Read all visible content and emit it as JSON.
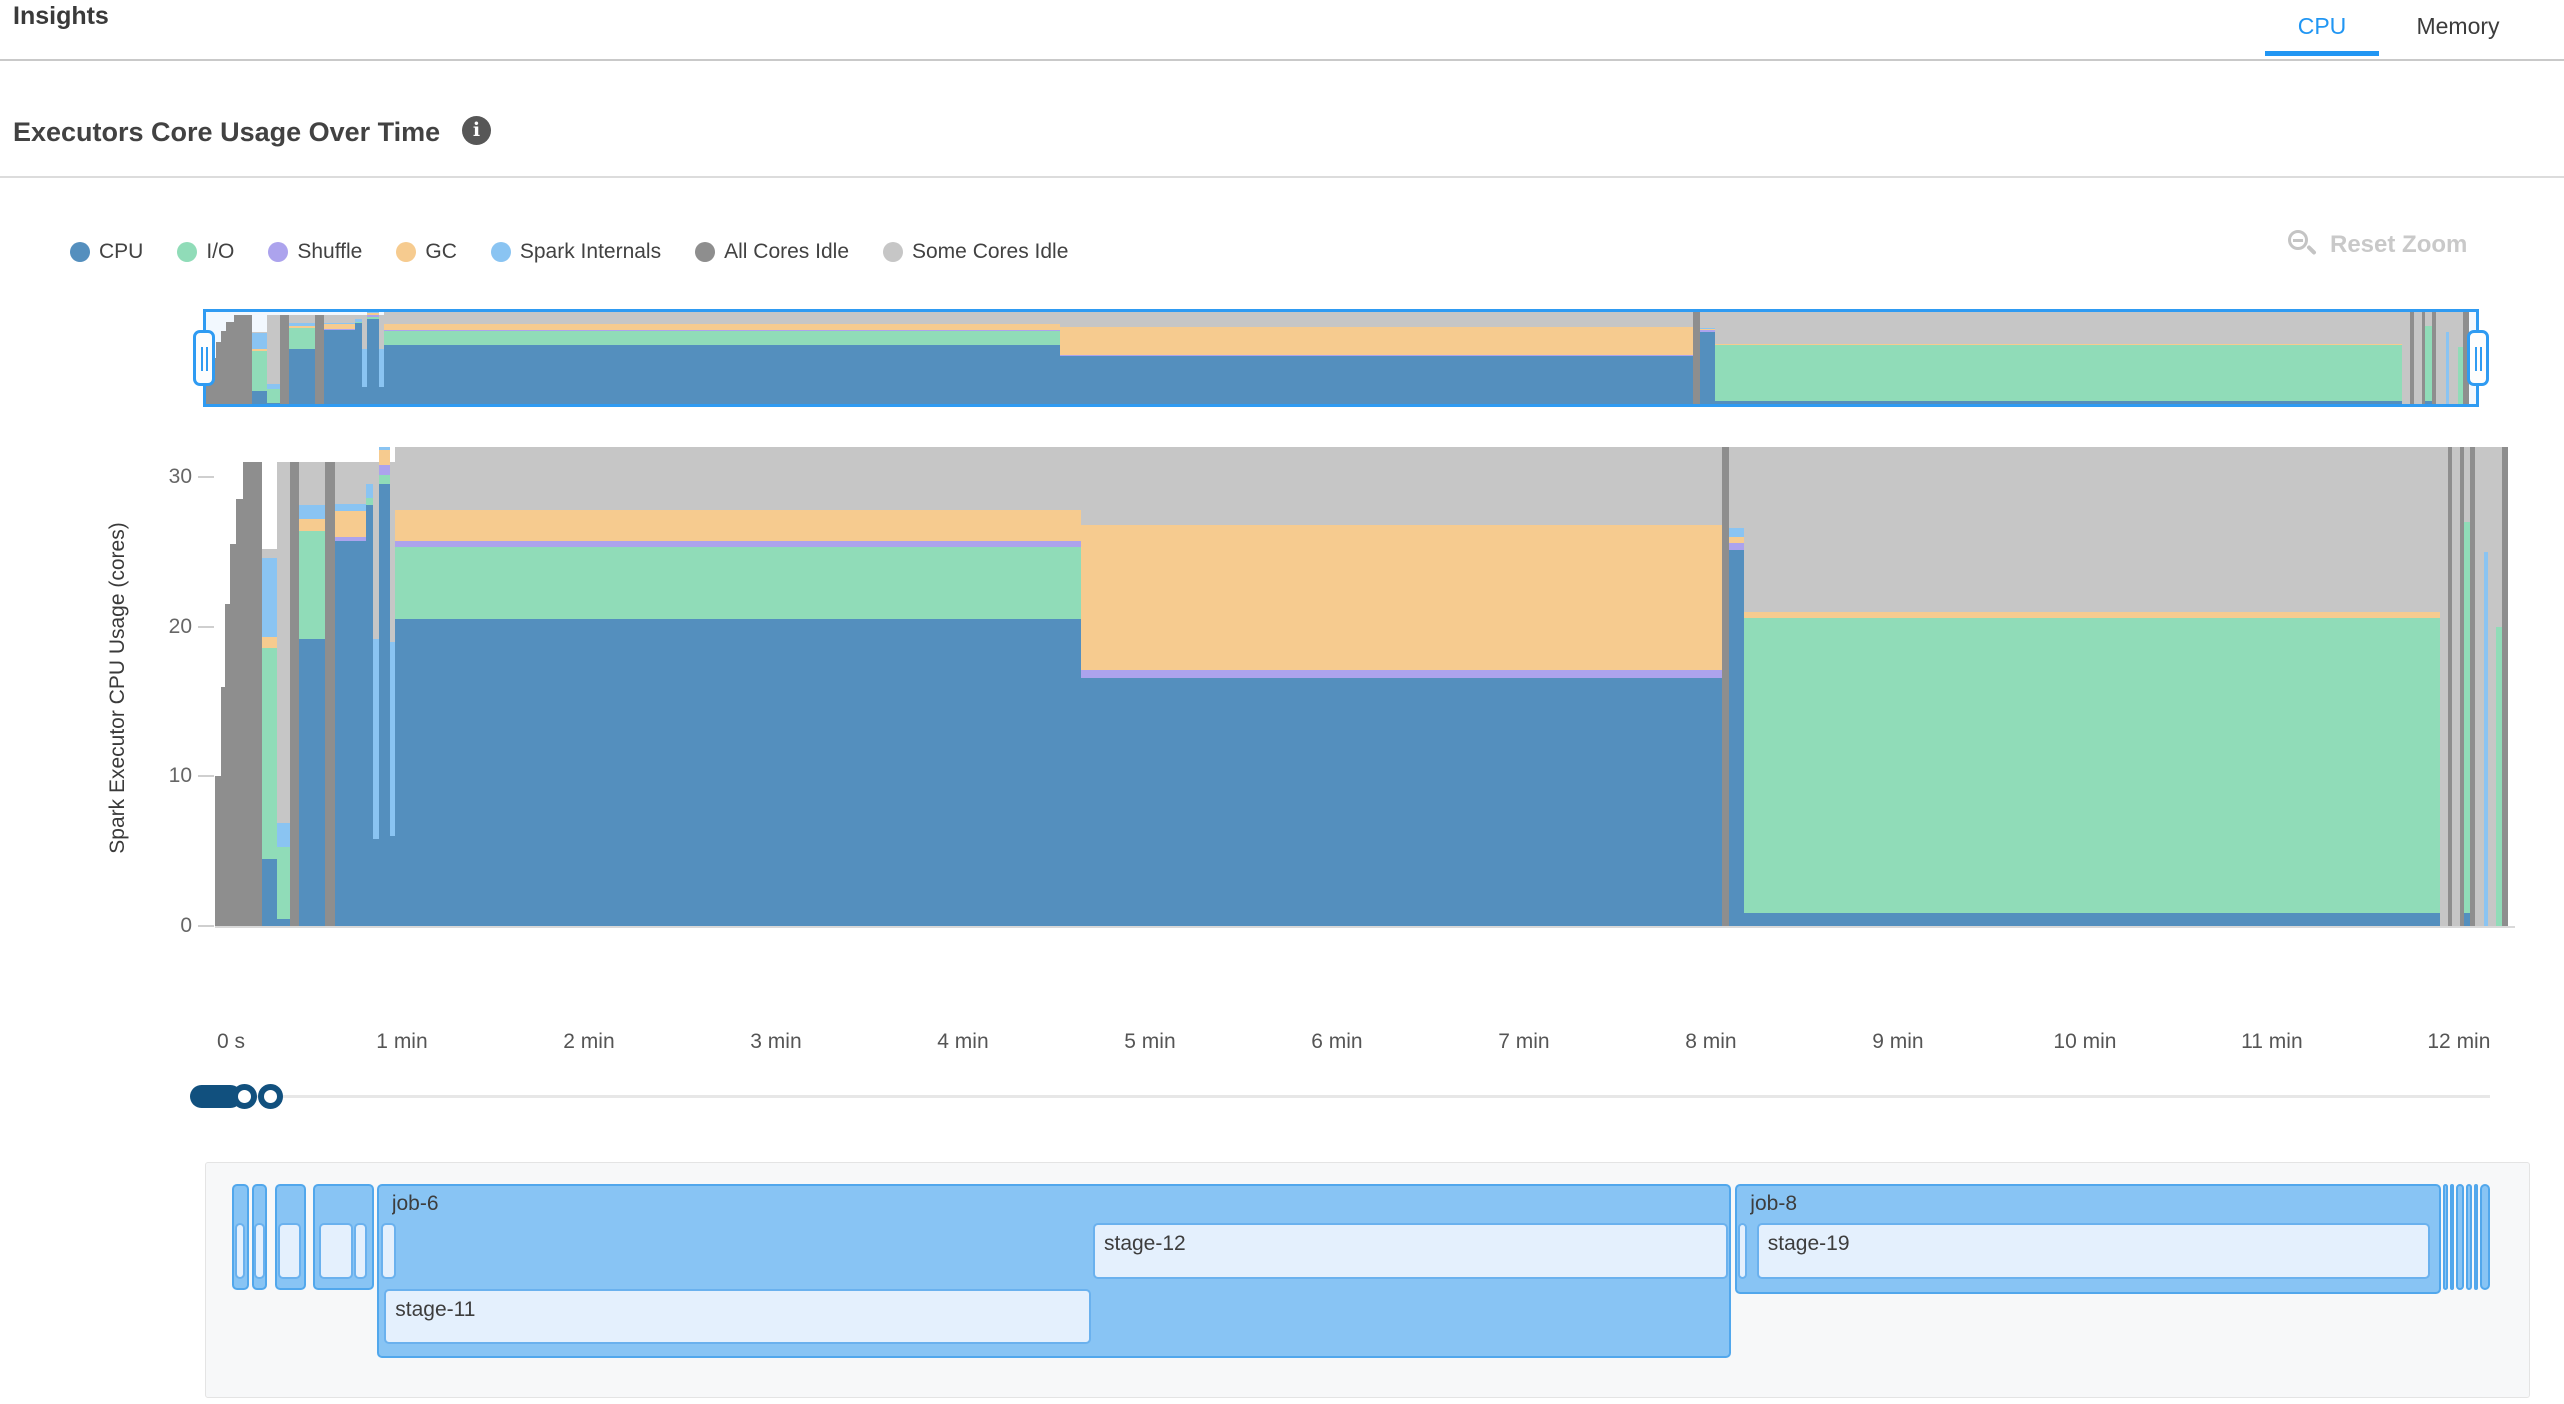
{
  "header": {
    "title": "Insights",
    "tabs": [
      {
        "label": "CPU",
        "active": true
      },
      {
        "label": "Memory",
        "active": false
      }
    ]
  },
  "section": {
    "title": "Executors Core Usage Over Time",
    "info_glyph": "i"
  },
  "toolbar": {
    "reset_zoom_label": "Reset Zoom"
  },
  "legend": [
    {
      "key": "cpu",
      "label": "CPU"
    },
    {
      "key": "io",
      "label": "I/O"
    },
    {
      "key": "shuffle",
      "label": "Shuffle"
    },
    {
      "key": "gc",
      "label": "GC"
    },
    {
      "key": "spark_internals",
      "label": "Spark Internals"
    },
    {
      "key": "all_cores_idle",
      "label": "All Cores Idle"
    },
    {
      "key": "some_cores_idle",
      "label": "Some Cores Idle"
    }
  ],
  "chart_data": {
    "type": "area",
    "title": "Executors Core Usage Over Time",
    "ylabel": "Spark Executor CPU Usage (cores)",
    "xlabel": "",
    "ylim": [
      0,
      32
    ],
    "xlim_minutes": [
      0,
      12.3
    ],
    "grid": false,
    "legend_position": "top-left",
    "y_ticks": [
      {
        "v": 0,
        "label": "0"
      },
      {
        "v": 10,
        "label": "10"
      },
      {
        "v": 20,
        "label": "20"
      },
      {
        "v": 30,
        "label": "30"
      }
    ],
    "x_ticks": [
      {
        "t": 0,
        "label": "0 s"
      },
      {
        "t": 1,
        "label": "1 min"
      },
      {
        "t": 2,
        "label": "2 min"
      },
      {
        "t": 3,
        "label": "3 min"
      },
      {
        "t": 4,
        "label": "4 min"
      },
      {
        "t": 5,
        "label": "5 min"
      },
      {
        "t": 6,
        "label": "6 min"
      },
      {
        "t": 7,
        "label": "7 min"
      },
      {
        "t": 8,
        "label": "8 min"
      },
      {
        "t": 9,
        "label": "9 min"
      },
      {
        "t": 10,
        "label": "10 min"
      },
      {
        "t": 11,
        "label": "11 min"
      },
      {
        "t": 12,
        "label": "12 min"
      }
    ],
    "series_keys": [
      "cpu",
      "io",
      "shuffle",
      "gc",
      "spark_internals",
      "all_cores_idle",
      "some_cores_idle"
    ],
    "colors": {
      "cpu": "#548fbe",
      "io": "#90dcb8",
      "shuffle": "#aca3ed",
      "gc": "#f6cb8f",
      "spark_internals": "#8ac4f2",
      "all_cores_idle": "#8e8e8e",
      "some_cores_idle": "#c6c6c6"
    },
    "segments": [
      {
        "t0": 0.0,
        "t1": 0.03,
        "v": {
          "all_cores_idle": 10
        }
      },
      {
        "t0": 0.03,
        "t1": 0.055,
        "v": {
          "all_cores_idle": 16
        }
      },
      {
        "t0": 0.055,
        "t1": 0.08,
        "v": {
          "all_cores_idle": 21.5
        }
      },
      {
        "t0": 0.08,
        "t1": 0.11,
        "v": {
          "all_cores_idle": 25.5
        }
      },
      {
        "t0": 0.11,
        "t1": 0.15,
        "v": {
          "all_cores_idle": 28.5
        }
      },
      {
        "t0": 0.15,
        "t1": 0.25,
        "v": {
          "all_cores_idle": 31
        }
      },
      {
        "t0": 0.25,
        "t1": 0.33,
        "v": {
          "cpu": 4.5,
          "io": 14.1,
          "gc": 0.7,
          "spark_internals": 5.3,
          "some_cores_idle": 0.6
        }
      },
      {
        "t0": 0.33,
        "t1": 0.4,
        "v": {
          "cpu": 0.5,
          "io": 4.8,
          "spark_internals": 1.6,
          "some_cores_idle": 24.1
        }
      },
      {
        "t0": 0.4,
        "t1": 0.45,
        "v": {
          "all_cores_idle": 31
        }
      },
      {
        "t0": 0.45,
        "t1": 0.59,
        "v": {
          "cpu": 19.2,
          "io": 7.2,
          "gc": 0.8,
          "spark_internals": 0.9,
          "some_cores_idle": 2.9
        }
      },
      {
        "t0": 0.59,
        "t1": 0.64,
        "v": {
          "all_cores_idle": 31
        }
      },
      {
        "t0": 0.64,
        "t1": 0.81,
        "v": {
          "cpu": 25.7,
          "shuffle": 0.3,
          "gc": 1.7,
          "spark_internals": 0.5,
          "some_cores_idle": 2.8
        }
      },
      {
        "t0": 0.81,
        "t1": 0.845,
        "v": {
          "cpu": 28.1,
          "io": 0.5,
          "spark_internals": 0.9,
          "some_cores_idle": 1.5
        }
      },
      {
        "t0": 0.845,
        "t1": 0.875,
        "v": {
          "cpu": 5.8,
          "spark_internals": 13.4,
          "some_cores_idle": 11.8
        }
      },
      {
        "t0": 0.875,
        "t1": 0.935,
        "v": {
          "cpu": 29.5,
          "io": 0.6,
          "shuffle": 0.7,
          "gc": 1.0,
          "spark_internals": 0.2
        }
      },
      {
        "t0": 0.935,
        "t1": 0.965,
        "v": {
          "cpu": 6.0,
          "spark_internals": 13.0,
          "some_cores_idle": 12.0
        }
      },
      {
        "t0": 0.965,
        "t1": 4.63,
        "v": {
          "cpu": 20.5,
          "io": 4.8,
          "shuffle": 0.4,
          "gc": 2.1,
          "some_cores_idle": 4.2
        }
      },
      {
        "t0": 4.63,
        "t1": 8.06,
        "v": {
          "cpu": 16.6,
          "shuffle": 0.5,
          "gc": 9.7,
          "some_cores_idle": 5.2
        }
      },
      {
        "t0": 8.06,
        "t1": 8.095,
        "v": {
          "all_cores_idle": 32
        }
      },
      {
        "t0": 8.095,
        "t1": 8.175,
        "v": {
          "cpu": 25.1,
          "shuffle": 0.5,
          "gc": 0.4,
          "spark_internals": 0.6,
          "some_cores_idle": 5.4
        }
      },
      {
        "t0": 8.175,
        "t1": 11.9,
        "v": {
          "cpu": 0.9,
          "io": 19.7,
          "gc": 0.4,
          "some_cores_idle": 11.0
        }
      },
      {
        "t0": 11.9,
        "t1": 11.94,
        "v": {
          "some_cores_idle": 32
        }
      },
      {
        "t0": 11.94,
        "t1": 11.965,
        "v": {
          "all_cores_idle": 32
        }
      },
      {
        "t0": 11.965,
        "t1": 12.005,
        "v": {
          "some_cores_idle": 32
        }
      },
      {
        "t0": 12.005,
        "t1": 12.025,
        "v": {
          "all_cores_idle": 32
        }
      },
      {
        "t0": 12.025,
        "t1": 12.06,
        "v": {
          "cpu": 0.9,
          "io": 26.1,
          "some_cores_idle": 5.0
        }
      },
      {
        "t0": 12.06,
        "t1": 12.085,
        "v": {
          "all_cores_idle": 32
        }
      },
      {
        "t0": 12.085,
        "t1": 12.135,
        "v": {
          "some_cores_idle": 32
        }
      },
      {
        "t0": 12.135,
        "t1": 12.155,
        "v": {
          "spark_internals": 25,
          "some_cores_idle": 7
        }
      },
      {
        "t0": 12.155,
        "t1": 12.2,
        "v": {
          "some_cores_idle": 32
        }
      },
      {
        "t0": 12.2,
        "t1": 12.23,
        "v": {
          "io": 20,
          "some_cores_idle": 12
        }
      },
      {
        "t0": 12.23,
        "t1": 12.26,
        "v": {
          "all_cores_idle": 32
        }
      }
    ]
  },
  "gantt": {
    "jobs": [
      {
        "t0": 0.085,
        "t1": 0.175,
        "label": "",
        "depth": 1,
        "stages": [
          {
            "t0": 0.1,
            "t1": 0.155,
            "label": "",
            "row": 1
          }
        ]
      },
      {
        "t0": 0.195,
        "t1": 0.275,
        "label": "",
        "depth": 1,
        "stages": [
          {
            "t0": 0.205,
            "t1": 0.26,
            "label": "",
            "row": 1
          }
        ]
      },
      {
        "t0": 0.315,
        "t1": 0.48,
        "label": "",
        "depth": 1,
        "stages": [
          {
            "t0": 0.33,
            "t1": 0.455,
            "label": "",
            "row": 1
          }
        ]
      },
      {
        "t0": 0.52,
        "t1": 0.845,
        "label": "",
        "depth": 1,
        "stages": [
          {
            "t0": 0.55,
            "t1": 0.73,
            "label": "",
            "row": 1
          },
          {
            "t0": 0.74,
            "t1": 0.805,
            "label": "",
            "row": 1
          }
        ]
      },
      {
        "t0": 0.86,
        "t1": 8.1,
        "label": "job-6",
        "depth": 2,
        "stages": [
          {
            "t0": 0.882,
            "t1": 0.96,
            "label": "",
            "row": 1
          },
          {
            "t0": 4.69,
            "t1": 8.085,
            "label": "stage-12",
            "row": 1
          },
          {
            "t0": 0.9,
            "t1": 4.68,
            "label": "stage-11",
            "row": 2
          }
        ]
      },
      {
        "t0": 8.125,
        "t1": 11.9,
        "label": "job-8",
        "depth": 1,
        "stages": [
          {
            "t0": 8.14,
            "t1": 8.185,
            "label": "",
            "row": 1
          },
          {
            "t0": 8.24,
            "t1": 11.84,
            "label": "stage-19",
            "row": 1
          }
        ]
      },
      {
        "t0": 11.91,
        "t1": 11.935,
        "label": "",
        "depth": 1,
        "stages": []
      },
      {
        "t0": 11.945,
        "t1": 11.97,
        "label": "",
        "depth": 1,
        "stages": []
      },
      {
        "t0": 11.98,
        "t1": 12.02,
        "label": "",
        "depth": 1,
        "stages": []
      },
      {
        "t0": 12.03,
        "t1": 12.065,
        "label": "",
        "depth": 1,
        "stages": []
      },
      {
        "t0": 12.075,
        "t1": 12.095,
        "label": "",
        "depth": 1,
        "stages": []
      },
      {
        "t0": 12.105,
        "t1": 12.16,
        "label": "",
        "depth": 1,
        "stages": []
      }
    ]
  }
}
